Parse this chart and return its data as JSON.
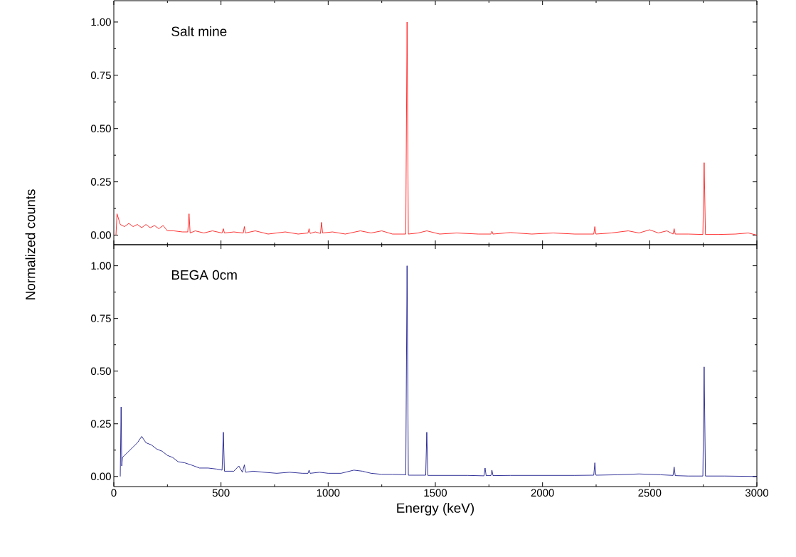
{
  "chart_data": [
    {
      "type": "line",
      "ylabel": "Normalized counts",
      "annotations": [
        "Salt mine"
      ],
      "tick_labels": "y",
      "xlim": [
        0,
        3000
      ],
      "xticks": [
        0,
        500,
        1000,
        1500,
        2000,
        2500,
        3000
      ],
      "ylim": [
        -0.045,
        1.1
      ],
      "yticks": [
        {
          "value": 0,
          "label": "0.00"
        },
        {
          "value": 0.25,
          "label": "0.25"
        },
        {
          "value": 0.5,
          "label": "0.50"
        },
        {
          "value": 0.75,
          "label": "0.75"
        },
        {
          "value": 1,
          "label": "1.00"
        }
      ],
      "series": [
        {
          "color": "#ff0000",
          "x": [
            10,
            15,
            30,
            50,
            70,
            90,
            110,
            130,
            150,
            170,
            190,
            210,
            230,
            250,
            280,
            320,
            345,
            351,
            356,
            380,
            420,
            460,
            505,
            511,
            516,
            560,
            604,
            609,
            614,
            660,
            720,
            800,
            860,
            906,
            911,
            916,
            940,
            964,
            969,
            974,
            1020,
            1080,
            1150,
            1200,
            1250,
            1300,
            1362,
            1368,
            1374,
            1420,
            1460,
            1520,
            1600,
            1700,
            1759,
            1764,
            1769,
            1850,
            1950,
            2050,
            2150,
            2239,
            2244,
            2249,
            2320,
            2400,
            2450,
            2500,
            2540,
            2580,
            2609,
            2614,
            2619,
            2680,
            2748,
            2754,
            2760,
            2820,
            2900,
            2960,
            3000
          ],
          "values": [
            0.0,
            0.1,
            0.05,
            0.04,
            0.055,
            0.04,
            0.05,
            0.035,
            0.05,
            0.035,
            0.045,
            0.03,
            0.045,
            0.02,
            0.02,
            0.015,
            0.015,
            0.1,
            0.01,
            0.02,
            0.01,
            0.02,
            0.01,
            0.03,
            0.01,
            0.015,
            0.01,
            0.04,
            0.01,
            0.02,
            0.005,
            0.015,
            0.005,
            0.01,
            0.03,
            0.008,
            0.015,
            0.008,
            0.06,
            0.01,
            0.015,
            0.005,
            0.02,
            0.01,
            0.02,
            0.005,
            0.005,
            1.0,
            0.005,
            0.01,
            0.02,
            0.005,
            0.01,
            0.005,
            0.005,
            0.018,
            0.005,
            0.012,
            0.005,
            0.01,
            0.005,
            0.005,
            0.04,
            0.005,
            0.01,
            0.02,
            0.01,
            0.025,
            0.01,
            0.02,
            0.005,
            0.03,
            0.005,
            0.005,
            0.003,
            0.34,
            0.003,
            0.003,
            0.005,
            0.01,
            0.0
          ]
        }
      ]
    },
    {
      "type": "line",
      "xlabel": "Energy (keV)",
      "annotations": [
        "BEGA 0cm"
      ],
      "xlim": [
        0,
        3000
      ],
      "xticks": [
        0,
        500,
        1000,
        1500,
        2000,
        2500,
        3000
      ],
      "ylim": [
        -0.048,
        1.1
      ],
      "yticks": [
        {
          "value": 0,
          "label": "0.00"
        },
        {
          "value": 0.25,
          "label": "0.25"
        },
        {
          "value": 0.5,
          "label": "0.50"
        },
        {
          "value": 0.75,
          "label": "0.75"
        },
        {
          "value": 1,
          "label": "1.00"
        }
      ],
      "series": [
        {
          "color": "#000080",
          "x": [
            30,
            34,
            37,
            40,
            50,
            70,
            90,
            110,
            130,
            150,
            175,
            200,
            225,
            250,
            275,
            300,
            330,
            360,
            400,
            440,
            480,
            505,
            511,
            516,
            560,
            583,
            600,
            609,
            615,
            650,
            700,
            760,
            820,
            880,
            906,
            911,
            916,
            960,
            1000,
            1060,
            1120,
            1160,
            1200,
            1250,
            1300,
            1362,
            1368,
            1374,
            1455,
            1460,
            1465,
            1550,
            1650,
            1727,
            1732,
            1737,
            1759,
            1764,
            1769,
            1850,
            1950,
            2050,
            2150,
            2239,
            2244,
            2249,
            2350,
            2450,
            2550,
            2609,
            2614,
            2619,
            2680,
            2748,
            2754,
            2760,
            2850,
            3000
          ],
          "values": [
            0.0,
            0.33,
            0.05,
            0.09,
            0.1,
            0.12,
            0.14,
            0.16,
            0.19,
            0.16,
            0.15,
            0.13,
            0.12,
            0.1,
            0.09,
            0.07,
            0.065,
            0.055,
            0.04,
            0.04,
            0.035,
            0.03,
            0.21,
            0.025,
            0.025,
            0.05,
            0.02,
            0.055,
            0.02,
            0.025,
            0.02,
            0.015,
            0.02,
            0.015,
            0.015,
            0.03,
            0.015,
            0.02,
            0.015,
            0.015,
            0.03,
            0.025,
            0.015,
            0.01,
            0.01,
            0.008,
            1.0,
            0.006,
            0.006,
            0.21,
            0.005,
            0.005,
            0.005,
            0.003,
            0.04,
            0.004,
            0.004,
            0.03,
            0.004,
            0.005,
            0.005,
            0.005,
            0.005,
            0.006,
            0.065,
            0.006,
            0.008,
            0.012,
            0.008,
            0.005,
            0.045,
            0.004,
            0.002,
            0.002,
            0.52,
            0.002,
            0.002,
            0.0
          ]
        }
      ]
    }
  ]
}
